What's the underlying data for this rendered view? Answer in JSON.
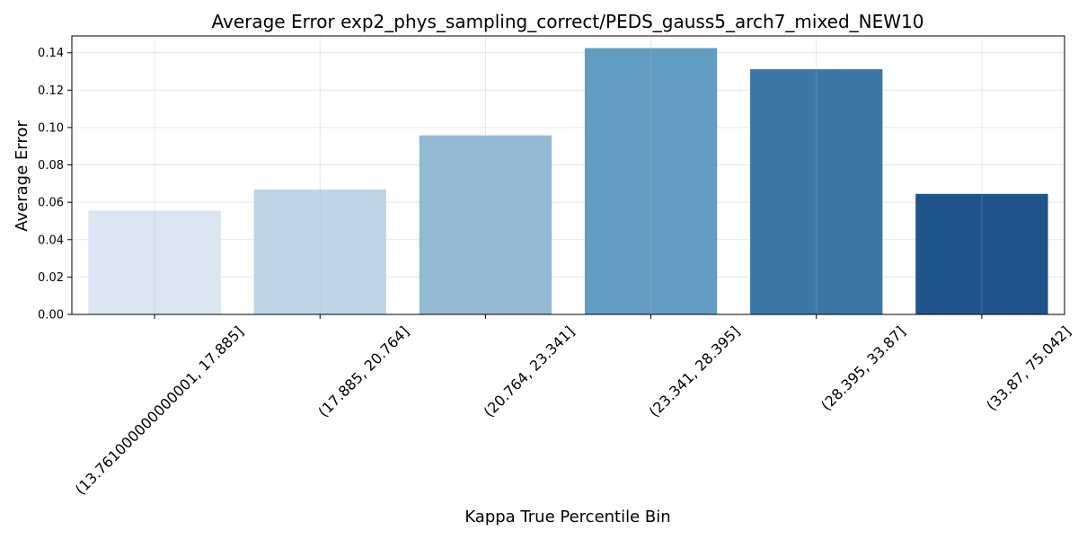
{
  "chart_data": {
    "type": "bar",
    "title": "Average Error exp2_phys_sampling_correct/PEDS_gauss5_arch7_mixed_NEW10",
    "xlabel": "Kappa True Percentile Bin",
    "ylabel": "Average Error",
    "categories": [
      "(13.761000000000001, 17.885]",
      "(17.885, 20.764]",
      "(20.764, 23.341]",
      "(23.341, 28.395]",
      "(28.395, 33.87]",
      "(33.87, 75.042]"
    ],
    "values": [
      0.0555,
      0.0668,
      0.0958,
      0.1425,
      0.1312,
      0.0645
    ],
    "colors": [
      "#dce6f2",
      "#bfd4e6",
      "#94bad3",
      "#639cc2",
      "#3a78aa",
      "#20548d"
    ],
    "ylim": [
      0,
      0.149
    ],
    "yticks": [
      "0.00",
      "0.02",
      "0.04",
      "0.06",
      "0.08",
      "0.10",
      "0.12",
      "0.14"
    ],
    "ytick_values": [
      0,
      0.02,
      0.04,
      0.06,
      0.08,
      0.1,
      0.12,
      0.14
    ],
    "grid": true,
    "legend": "none"
  }
}
